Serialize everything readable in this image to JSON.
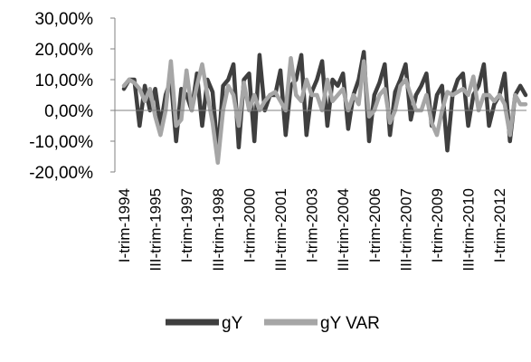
{
  "chart_data": {
    "type": "line",
    "title": "",
    "xlabel": "",
    "ylabel": "",
    "ylim": [
      -0.2,
      0.3
    ],
    "y_ticks": [
      "30,00%",
      "20,00%",
      "10,00%",
      "0,00%",
      "-10,00%",
      "-20,00%"
    ],
    "y_tick_values": [
      0.3,
      0.2,
      0.1,
      0.0,
      -0.1,
      -0.2
    ],
    "x_tick_labels": [
      "I-trim-1994",
      "III-trim-1995",
      "I-trim-1997",
      "III-trim-1998",
      "I-trim-2000",
      "III-trim-2001",
      "I-trim-2003",
      "III-trim-2004",
      "I-trim-2006",
      "III-trim-2007",
      "I-trim-2009",
      "III-trim-2010",
      "I-trim-2012"
    ],
    "x_tick_every": 6,
    "n_points": 78,
    "legend_position": "bottom",
    "colors": {
      "gY": "#3f3f3f",
      "gY VAR": "#a6a6a6"
    },
    "series": [
      {
        "name": "gY",
        "values": [
          0.07,
          0.1,
          0.1,
          -0.05,
          0.08,
          0.0,
          0.07,
          -0.05,
          0.05,
          0.1,
          -0.1,
          0.07,
          0.05,
          0.0,
          0.12,
          -0.05,
          0.1,
          0.06,
          -0.14,
          0.08,
          0.1,
          0.15,
          -0.12,
          0.1,
          0.12,
          -0.1,
          0.18,
          0.0,
          0.05,
          0.05,
          0.13,
          -0.08,
          0.08,
          0.1,
          0.18,
          -0.08,
          0.06,
          0.1,
          0.16,
          -0.05,
          0.1,
          0.08,
          0.12,
          -0.06,
          0.05,
          0.1,
          0.19,
          -0.1,
          0.05,
          0.09,
          0.15,
          -0.08,
          0.06,
          0.1,
          0.15,
          -0.03,
          0.05,
          0.08,
          0.12,
          -0.05,
          0.05,
          0.08,
          -0.13,
          0.05,
          0.1,
          0.12,
          -0.05,
          0.05,
          0.08,
          0.15,
          -0.05,
          0.02,
          0.05,
          0.12,
          -0.1,
          0.05,
          0.08,
          0.05
        ]
      },
      {
        "name": "gY VAR",
        "values": [
          0.08,
          0.1,
          0.09,
          0.07,
          0.03,
          0.07,
          -0.02,
          -0.08,
          0.0,
          0.16,
          -0.05,
          -0.03,
          0.13,
          0.0,
          0.08,
          0.15,
          0.05,
          -0.04,
          -0.17,
          0.0,
          0.08,
          0.05,
          -0.05,
          0.09,
          0.0,
          0.05,
          0.0,
          0.03,
          0.05,
          0.06,
          0.03,
          0.0,
          0.17,
          0.05,
          0.03,
          0.1,
          0.05,
          0.05,
          0.0,
          0.1,
          0.03,
          0.05,
          0.07,
          0.0,
          0.05,
          0.02,
          0.16,
          -0.02,
          0.0,
          0.05,
          0.07,
          -0.04,
          0.0,
          0.08,
          0.1,
          0.05,
          0.0,
          0.0,
          0.05,
          -0.04,
          -0.08,
          0.0,
          0.06,
          0.05,
          0.06,
          0.07,
          0.05,
          0.11,
          0.0,
          0.05,
          0.05,
          0.03,
          0.05,
          0.02,
          -0.08,
          0.05,
          0.02,
          0.02
        ]
      }
    ]
  }
}
